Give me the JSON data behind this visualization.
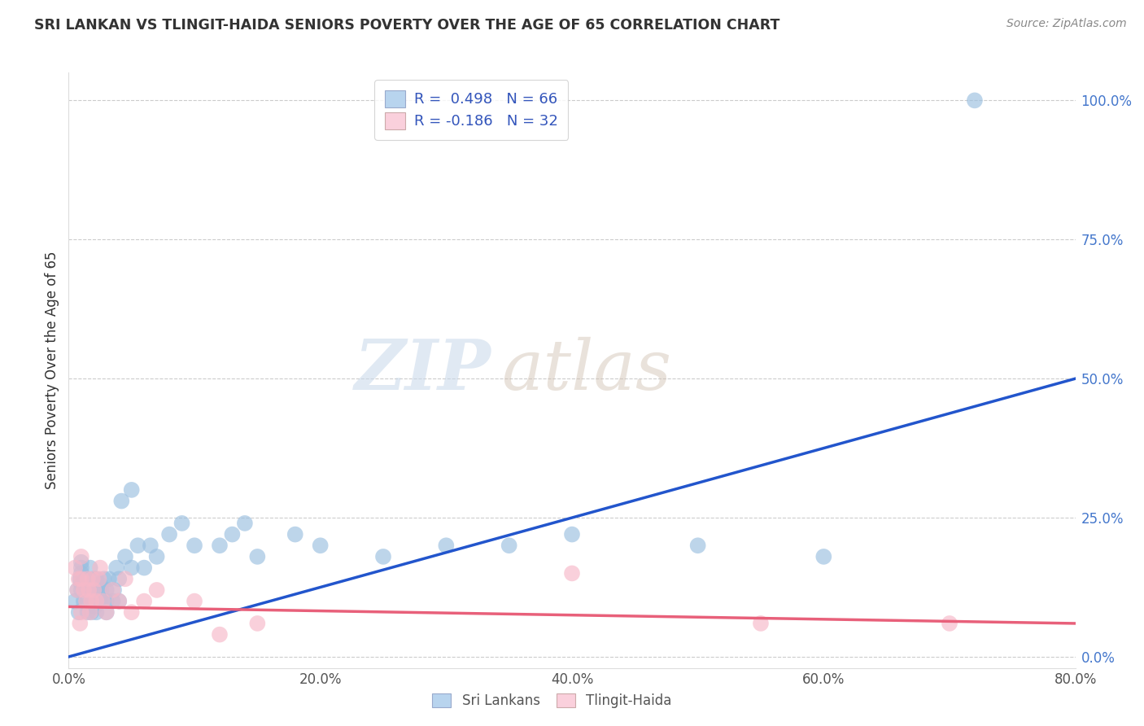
{
  "title": "SRI LANKAN VS TLINGIT-HAIDA SENIORS POVERTY OVER THE AGE OF 65 CORRELATION CHART",
  "source": "Source: ZipAtlas.com",
  "ylabel_label": "Seniors Poverty Over the Age of 65",
  "xlim": [
    0.0,
    0.8
  ],
  "ylim": [
    -0.02,
    1.05
  ],
  "blue_R": 0.498,
  "blue_N": 66,
  "pink_R": -0.186,
  "pink_N": 32,
  "blue_color": "#9abfe0",
  "pink_color": "#f7b8c8",
  "blue_line_color": "#2255cc",
  "pink_line_color": "#e8607a",
  "legend_blue_face": "#b8d4ee",
  "legend_pink_face": "#fad0dc",
  "title_color": "#333333",
  "source_color": "#888888",
  "watermark_zip_color": "#c5d8ea",
  "watermark_atlas_color": "#d0c8c0",
  "grid_color": "#cccccc",
  "blue_x": [
    0.005,
    0.007,
    0.008,
    0.009,
    0.01,
    0.01,
    0.01,
    0.01,
    0.01,
    0.01,
    0.012,
    0.013,
    0.015,
    0.015,
    0.015,
    0.016,
    0.017,
    0.018,
    0.018,
    0.019,
    0.02,
    0.02,
    0.02,
    0.021,
    0.022,
    0.022,
    0.023,
    0.024,
    0.025,
    0.025,
    0.026,
    0.027,
    0.028,
    0.03,
    0.03,
    0.03,
    0.032,
    0.035,
    0.036,
    0.038,
    0.04,
    0.04,
    0.042,
    0.045,
    0.05,
    0.05,
    0.055,
    0.06,
    0.065,
    0.07,
    0.08,
    0.09,
    0.1,
    0.12,
    0.13,
    0.14,
    0.15,
    0.18,
    0.2,
    0.25,
    0.3,
    0.35,
    0.4,
    0.5,
    0.6,
    0.72
  ],
  "blue_y": [
    0.1,
    0.12,
    0.08,
    0.14,
    0.12,
    0.13,
    0.14,
    0.15,
    0.16,
    0.17,
    0.1,
    0.13,
    0.08,
    0.1,
    0.14,
    0.12,
    0.16,
    0.08,
    0.1,
    0.12,
    0.1,
    0.12,
    0.14,
    0.09,
    0.08,
    0.14,
    0.1,
    0.12,
    0.1,
    0.13,
    0.12,
    0.1,
    0.14,
    0.08,
    0.1,
    0.12,
    0.14,
    0.1,
    0.12,
    0.16,
    0.1,
    0.14,
    0.28,
    0.18,
    0.16,
    0.3,
    0.2,
    0.16,
    0.2,
    0.18,
    0.22,
    0.24,
    0.2,
    0.2,
    0.22,
    0.24,
    0.18,
    0.22,
    0.2,
    0.18,
    0.2,
    0.2,
    0.22,
    0.2,
    0.18,
    1.0
  ],
  "pink_x": [
    0.005,
    0.007,
    0.008,
    0.009,
    0.01,
    0.01,
    0.01,
    0.012,
    0.014,
    0.015,
    0.016,
    0.017,
    0.018,
    0.019,
    0.02,
    0.022,
    0.024,
    0.025,
    0.027,
    0.03,
    0.035,
    0.04,
    0.045,
    0.05,
    0.06,
    0.07,
    0.1,
    0.12,
    0.15,
    0.4,
    0.55,
    0.7
  ],
  "pink_y": [
    0.16,
    0.12,
    0.14,
    0.06,
    0.18,
    0.14,
    0.08,
    0.12,
    0.1,
    0.14,
    0.12,
    0.08,
    0.1,
    0.14,
    0.12,
    0.1,
    0.14,
    0.16,
    0.1,
    0.08,
    0.12,
    0.1,
    0.14,
    0.08,
    0.1,
    0.12,
    0.1,
    0.04,
    0.06,
    0.15,
    0.06,
    0.06
  ],
  "blue_line_x0": 0.0,
  "blue_line_y0": 0.0,
  "blue_line_x1": 0.8,
  "blue_line_y1": 0.5,
  "pink_line_x0": 0.0,
  "pink_line_y0": 0.09,
  "pink_line_x1": 0.8,
  "pink_line_y1": 0.06
}
